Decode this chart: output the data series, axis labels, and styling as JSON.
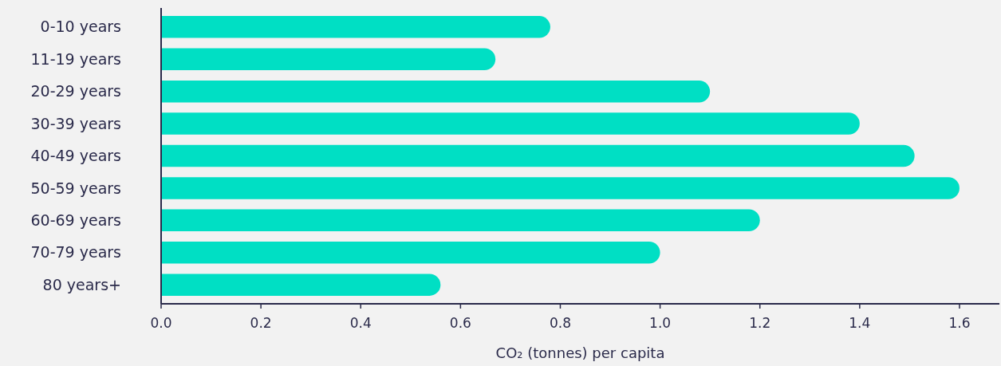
{
  "chart_data": {
    "type": "bar",
    "orientation": "horizontal",
    "xlabel": "CO₂ (tonnes) per capita",
    "categories": [
      "0-10 years",
      "11-19 years",
      "20-29 years",
      "30-39 years",
      "40-49 years",
      "50-59 years",
      "60-69 years",
      "70-79 years",
      "80 years+"
    ],
    "values": [
      0.78,
      0.67,
      1.1,
      1.4,
      1.51,
      1.6,
      1.2,
      1.0,
      0.56
    ],
    "color": "#00dfc4",
    "xlim": [
      0,
      1.68
    ],
    "xticks": [
      {
        "value": 0,
        "label": "0.0"
      },
      0.2,
      0.4,
      0.6,
      0.8,
      {
        "value": 1,
        "label": "1.0"
      },
      1.2,
      1.4,
      1.6
    ],
    "grid": false
  }
}
